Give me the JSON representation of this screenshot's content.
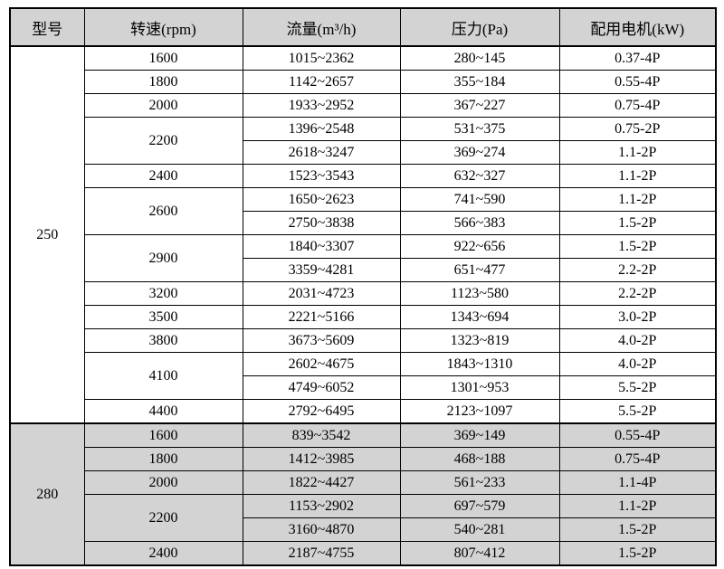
{
  "colors": {
    "header_bg": "#d3d3d3",
    "shaded_bg": "#d3d3d3",
    "border": "#000000",
    "page_bg": "#ffffff"
  },
  "table": {
    "headers": [
      {
        "label": "型号"
      },
      {
        "label": "转速(rpm)"
      },
      {
        "label": "流量(m³/h)"
      },
      {
        "label": "压力(Pa)"
      },
      {
        "label": "配用电机(kW)"
      }
    ],
    "groups": [
      {
        "model": "250",
        "shaded": false,
        "rows": [
          {
            "speed": "1600",
            "entries": [
              {
                "flow": "1015~2362",
                "pressure": "280~145",
                "motor": "0.37-4P"
              }
            ]
          },
          {
            "speed": "1800",
            "entries": [
              {
                "flow": "1142~2657",
                "pressure": "355~184",
                "motor": "0.55-4P"
              }
            ]
          },
          {
            "speed": "2000",
            "entries": [
              {
                "flow": "1933~2952",
                "pressure": "367~227",
                "motor": "0.75-4P"
              }
            ]
          },
          {
            "speed": "2200",
            "entries": [
              {
                "flow": "1396~2548",
                "pressure": "531~375",
                "motor": "0.75-2P"
              },
              {
                "flow": "2618~3247",
                "pressure": "369~274",
                "motor": "1.1-2P"
              }
            ]
          },
          {
            "speed": "2400",
            "entries": [
              {
                "flow": "1523~3543",
                "pressure": "632~327",
                "motor": "1.1-2P"
              }
            ]
          },
          {
            "speed": "2600",
            "entries": [
              {
                "flow": "1650~2623",
                "pressure": "741~590",
                "motor": "1.1-2P"
              },
              {
                "flow": "2750~3838",
                "pressure": "566~383",
                "motor": "1.5-2P"
              }
            ]
          },
          {
            "speed": "2900",
            "entries": [
              {
                "flow": "1840~3307",
                "pressure": "922~656",
                "motor": "1.5-2P"
              },
              {
                "flow": "3359~4281",
                "pressure": "651~477",
                "motor": "2.2-2P"
              }
            ]
          },
          {
            "speed": "3200",
            "entries": [
              {
                "flow": "2031~4723",
                "pressure": "1123~580",
                "motor": "2.2-2P"
              }
            ]
          },
          {
            "speed": "3500",
            "entries": [
              {
                "flow": "2221~5166",
                "pressure": "1343~694",
                "motor": "3.0-2P"
              }
            ]
          },
          {
            "speed": "3800",
            "entries": [
              {
                "flow": "3673~5609",
                "pressure": "1323~819",
                "motor": "4.0-2P"
              }
            ]
          },
          {
            "speed": "4100",
            "entries": [
              {
                "flow": "2602~4675",
                "pressure": "1843~1310",
                "motor": "4.0-2P"
              },
              {
                "flow": "4749~6052",
                "pressure": "1301~953",
                "motor": "5.5-2P"
              }
            ]
          },
          {
            "speed": "4400",
            "entries": [
              {
                "flow": "2792~6495",
                "pressure": "2123~1097",
                "motor": "5.5-2P"
              }
            ]
          }
        ]
      },
      {
        "model": "280",
        "shaded": true,
        "rows": [
          {
            "speed": "1600",
            "entries": [
              {
                "flow": "839~3542",
                "pressure": "369~149",
                "motor": "0.55-4P"
              }
            ]
          },
          {
            "speed": "1800",
            "entries": [
              {
                "flow": "1412~3985",
                "pressure": "468~188",
                "motor": "0.75-4P"
              }
            ]
          },
          {
            "speed": "2000",
            "entries": [
              {
                "flow": "1822~4427",
                "pressure": "561~233",
                "motor": "1.1-4P"
              }
            ]
          },
          {
            "speed": "2200",
            "entries": [
              {
                "flow": "1153~2902",
                "pressure": "697~579",
                "motor": "1.1-2P"
              },
              {
                "flow": "3160~4870",
                "pressure": "540~281",
                "motor": "1.5-2P"
              }
            ]
          },
          {
            "speed": "2400",
            "entries": [
              {
                "flow": "2187~4755",
                "pressure": "807~412",
                "motor": "1.5-2P"
              }
            ]
          }
        ]
      }
    ]
  }
}
